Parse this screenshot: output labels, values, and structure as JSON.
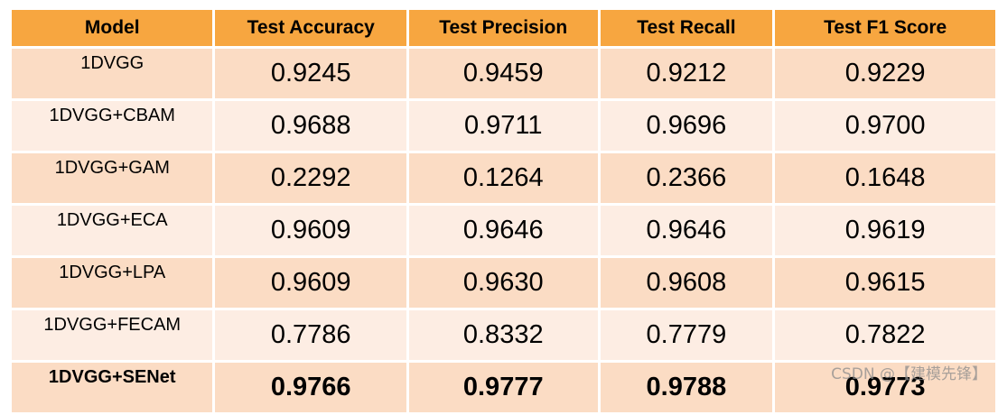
{
  "table": {
    "headers": [
      "Model",
      "Test Accuracy",
      "Test Precision",
      "Test Recall",
      "Test F1 Score"
    ],
    "rows": [
      {
        "model": "1DVGG",
        "accuracy": "0.9245",
        "precision": "0.9459",
        "recall": "0.9212",
        "f1": "0.9229"
      },
      {
        "model": "1DVGG+CBAM",
        "accuracy": "0.9688",
        "precision": "0.9711",
        "recall": "0.9696",
        "f1": "0.9700"
      },
      {
        "model": "1DVGG+GAM",
        "accuracy": "0.2292",
        "precision": "0.1264",
        "recall": "0.2366",
        "f1": "0.1648"
      },
      {
        "model": "1DVGG+ECA",
        "accuracy": "0.9609",
        "precision": "0.9646",
        "recall": "0.9646",
        "f1": "0.9619"
      },
      {
        "model": "1DVGG+LPA",
        "accuracy": "0.9609",
        "precision": "0.9630",
        "recall": "0.9608",
        "f1": "0.9615"
      },
      {
        "model": "1DVGG+FECAM",
        "accuracy": "0.7786",
        "precision": "0.8332",
        "recall": "0.7779",
        "f1": "0.7822"
      },
      {
        "model": "1DVGG+SENet",
        "accuracy": "0.9766",
        "precision": "0.9777",
        "recall": "0.9788",
        "f1": "0.9773"
      }
    ],
    "highlighted_row": "1DVGG+SENet"
  },
  "colors": {
    "header_bg": "#f7a640",
    "row_dark": "#fbdcc4",
    "row_light": "#fdede3"
  },
  "watermark": "CSDN @【建模先锋】"
}
